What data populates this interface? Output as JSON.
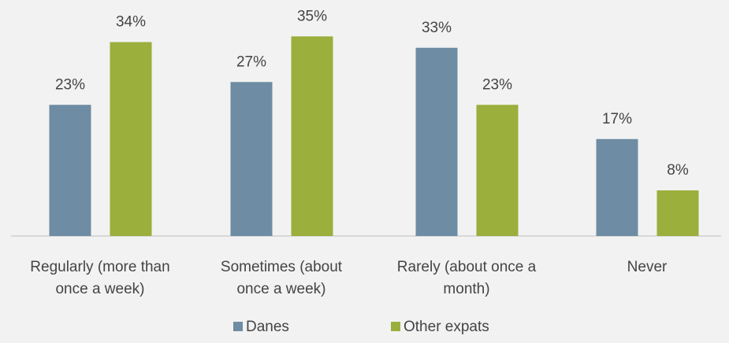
{
  "chart_data": {
    "type": "bar",
    "title": "",
    "xlabel": "",
    "ylabel": "",
    "ylim": [
      0,
      35
    ],
    "grid": false,
    "legend_position": "bottom",
    "value_suffix": "%",
    "categories": [
      [
        "Regularly (more than",
        "once a week)"
      ],
      [
        "Sometimes (about",
        "once a week)"
      ],
      [
        "Rarely (about once a",
        "month)"
      ],
      [
        "Never"
      ]
    ],
    "series": [
      {
        "name": "Danes",
        "color": "#6e8ca3",
        "values": [
          23,
          27,
          33,
          17
        ]
      },
      {
        "name": "Other expats",
        "color": "#9aaf3c",
        "values": [
          34,
          35,
          23,
          8
        ]
      }
    ]
  }
}
